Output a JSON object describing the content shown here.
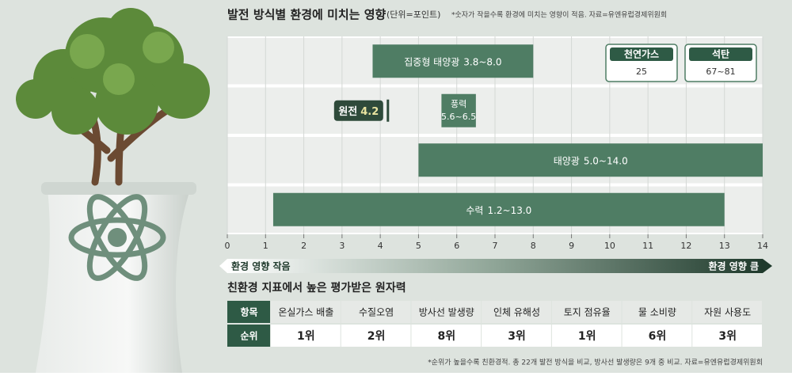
{
  "chart_data": {
    "type": "range",
    "title": "발전 방식별 환경에 미치는 영향",
    "subtitle": "(단위=포인트)",
    "note": "*숫자가 작을수록 환경에 미치는 영향이 적음. 자료=유엔유럽경제위원회",
    "groups": [
      [
        {
          "name": "집중형 태양광",
          "values": [
            3.8,
            8.0
          ],
          "value_labels": "3.8~8.0"
        }
      ],
      [
        {
          "name": "원전",
          "values": [
            4.2
          ],
          "value_labels": "4.2"
        },
        {
          "name": "풍력",
          "values": [
            5.6,
            6.5
          ],
          "value_labels": "5.6~6.5"
        }
      ],
      [
        {
          "name": "태양광",
          "values": [
            5.0,
            14.0
          ],
          "value_labels": "5.0~14.0"
        }
      ],
      [
        {
          "name": "수력",
          "values": [
            1.2,
            13.0
          ],
          "value_labels": "1.2~13.0"
        }
      ]
    ],
    "offscale": [
      {
        "name": "천연가스",
        "values": [
          25
        ],
        "value_labels": "25"
      },
      {
        "name": "석탄",
        "values": [
          67,
          81
        ],
        "value_labels": "67~81"
      }
    ],
    "color": "#4f7d64",
    "xlim": [
      0,
      14
    ],
    "xticks": [
      0,
      1,
      2,
      3,
      4,
      5,
      6,
      7,
      8,
      9,
      10,
      11,
      12,
      13,
      14
    ],
    "grid": true,
    "axis_low_label": "환경 영향 작음",
    "axis_high_label": "환경 영향 큼"
  },
  "table": {
    "title": "친환경 지표에서 높은 평가받은 원자력",
    "rows": [
      [
        "항목",
        "온실가스 배출",
        "수질오염",
        "방사선 발생량",
        "인체 유해성",
        "토지 점유율",
        "물 소비량",
        "자원 사용도"
      ],
      [
        "순위",
        "1위",
        "2위",
        "8위",
        "3위",
        "1위",
        "6위",
        "3위"
      ]
    ],
    "footnote": "*순위가 높을수록 친환경적. 총 22개 발전 방식을 비교, 방사선 발생량은 9개 중 비교. 자료=유엔유럽경제위원회"
  }
}
